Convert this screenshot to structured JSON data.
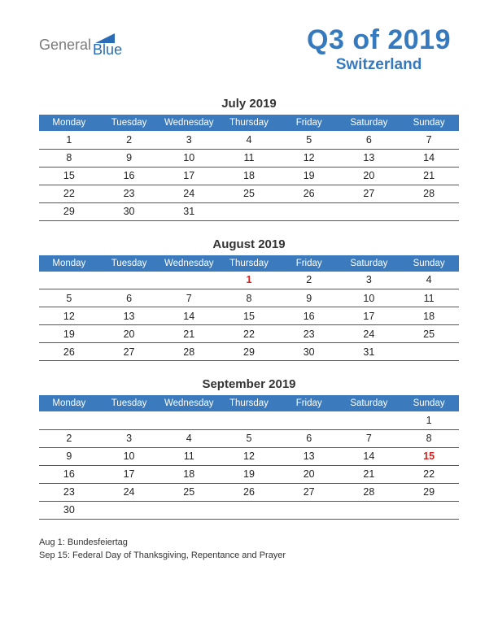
{
  "logo": {
    "text_gray": "General",
    "text_blue": "Blue",
    "sail_color": "#2a6db6",
    "gray_color": "#7a7a7a",
    "blue_color": "#2a6db6"
  },
  "header": {
    "title": "Q3 of 2019",
    "subtitle": "Switzerland",
    "title_color": "#3579bf"
  },
  "calendar": {
    "header_bg": "#3a7abd",
    "header_fg": "#ffffff",
    "row_border": "#555555",
    "holiday_color": "#d62020",
    "text_color": "#222222",
    "days": [
      "Monday",
      "Tuesday",
      "Wednesday",
      "Thursday",
      "Friday",
      "Saturday",
      "Sunday"
    ],
    "months": [
      {
        "title": "July 2019",
        "weeks": [
          [
            {
              "d": "1"
            },
            {
              "d": "2"
            },
            {
              "d": "3"
            },
            {
              "d": "4"
            },
            {
              "d": "5"
            },
            {
              "d": "6"
            },
            {
              "d": "7"
            }
          ],
          [
            {
              "d": "8"
            },
            {
              "d": "9"
            },
            {
              "d": "10"
            },
            {
              "d": "11"
            },
            {
              "d": "12"
            },
            {
              "d": "13"
            },
            {
              "d": "14"
            }
          ],
          [
            {
              "d": "15"
            },
            {
              "d": "16"
            },
            {
              "d": "17"
            },
            {
              "d": "18"
            },
            {
              "d": "19"
            },
            {
              "d": "20"
            },
            {
              "d": "21"
            }
          ],
          [
            {
              "d": "22"
            },
            {
              "d": "23"
            },
            {
              "d": "24"
            },
            {
              "d": "25"
            },
            {
              "d": "26"
            },
            {
              "d": "27"
            },
            {
              "d": "28"
            }
          ],
          [
            {
              "d": "29"
            },
            {
              "d": "30"
            },
            {
              "d": "31"
            },
            {
              "d": ""
            },
            {
              "d": ""
            },
            {
              "d": ""
            },
            {
              "d": ""
            }
          ]
        ]
      },
      {
        "title": "August 2019",
        "weeks": [
          [
            {
              "d": ""
            },
            {
              "d": ""
            },
            {
              "d": ""
            },
            {
              "d": "1",
              "h": true
            },
            {
              "d": "2"
            },
            {
              "d": "3"
            },
            {
              "d": "4"
            }
          ],
          [
            {
              "d": "5"
            },
            {
              "d": "6"
            },
            {
              "d": "7"
            },
            {
              "d": "8"
            },
            {
              "d": "9"
            },
            {
              "d": "10"
            },
            {
              "d": "11"
            }
          ],
          [
            {
              "d": "12"
            },
            {
              "d": "13"
            },
            {
              "d": "14"
            },
            {
              "d": "15"
            },
            {
              "d": "16"
            },
            {
              "d": "17"
            },
            {
              "d": "18"
            }
          ],
          [
            {
              "d": "19"
            },
            {
              "d": "20"
            },
            {
              "d": "21"
            },
            {
              "d": "22"
            },
            {
              "d": "23"
            },
            {
              "d": "24"
            },
            {
              "d": "25"
            }
          ],
          [
            {
              "d": "26"
            },
            {
              "d": "27"
            },
            {
              "d": "28"
            },
            {
              "d": "29"
            },
            {
              "d": "30"
            },
            {
              "d": "31"
            },
            {
              "d": ""
            }
          ]
        ]
      },
      {
        "title": "September 2019",
        "weeks": [
          [
            {
              "d": ""
            },
            {
              "d": ""
            },
            {
              "d": ""
            },
            {
              "d": ""
            },
            {
              "d": ""
            },
            {
              "d": ""
            },
            {
              "d": "1"
            }
          ],
          [
            {
              "d": "2"
            },
            {
              "d": "3"
            },
            {
              "d": "4"
            },
            {
              "d": "5"
            },
            {
              "d": "6"
            },
            {
              "d": "7"
            },
            {
              "d": "8"
            }
          ],
          [
            {
              "d": "9"
            },
            {
              "d": "10"
            },
            {
              "d": "11"
            },
            {
              "d": "12"
            },
            {
              "d": "13"
            },
            {
              "d": "14"
            },
            {
              "d": "15",
              "h": true
            }
          ],
          [
            {
              "d": "16"
            },
            {
              "d": "17"
            },
            {
              "d": "18"
            },
            {
              "d": "19"
            },
            {
              "d": "20"
            },
            {
              "d": "21"
            },
            {
              "d": "22"
            }
          ],
          [
            {
              "d": "23"
            },
            {
              "d": "24"
            },
            {
              "d": "25"
            },
            {
              "d": "26"
            },
            {
              "d": "27"
            },
            {
              "d": "28"
            },
            {
              "d": "29"
            }
          ],
          [
            {
              "d": "30"
            },
            {
              "d": ""
            },
            {
              "d": ""
            },
            {
              "d": ""
            },
            {
              "d": ""
            },
            {
              "d": ""
            },
            {
              "d": ""
            }
          ]
        ]
      }
    ]
  },
  "footer": {
    "lines": [
      "Aug 1: Bundesfeiertag",
      "Sep 15: Federal Day of Thanksgiving, Repentance and Prayer"
    ]
  }
}
